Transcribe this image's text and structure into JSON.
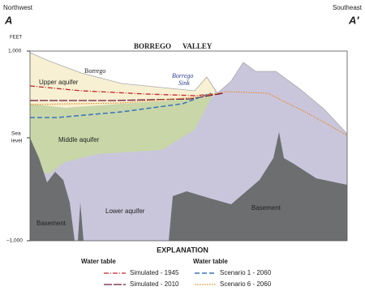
{
  "header": {
    "left_direction": "Northwest",
    "left_label": "A",
    "right_direction": "Southeast",
    "right_label": "A′"
  },
  "axis": {
    "unit": "FEET",
    "top": "1,000",
    "sea_level": [
      "Sea",
      "level"
    ],
    "bottom": "–1,000"
  },
  "labels": {
    "valley": [
      "BORREGO",
      "VALLEY"
    ],
    "borrego": "Borrego",
    "upper_aquifer": "Upper aquifer",
    "borrego_sink": [
      "Borrego",
      "Sink"
    ],
    "middle_aquifer": "Middle aquifer",
    "lower_aquifer": "Lower aquifer",
    "basement": [
      "Basement",
      "Basement"
    ]
  },
  "legend": {
    "title": "EXPLANATION",
    "groups": [
      {
        "heading": "Water table",
        "items": [
          "Simulated - 1945",
          "Simulated - 2010"
        ]
      },
      {
        "heading": "Water table",
        "items": [
          "Scenario 1 - 2060",
          "Scenario 6 - 2060"
        ]
      }
    ]
  }
}
